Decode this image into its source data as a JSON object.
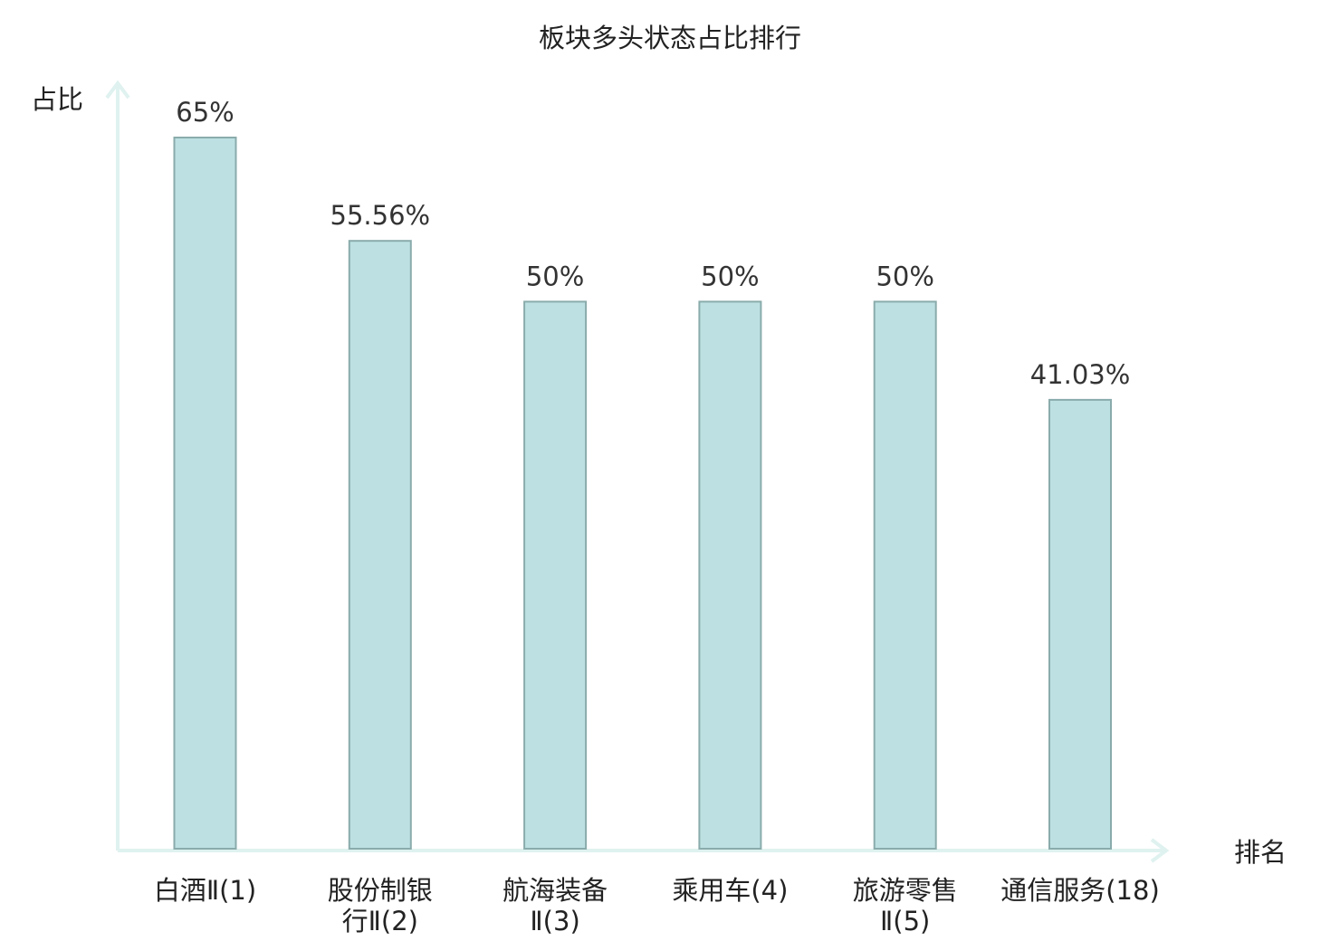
{
  "chart_data": {
    "type": "bar",
    "title": "板块多头状态占比排行",
    "xlabel": "排名",
    "ylabel": "占比",
    "ylim": [
      0,
      70
    ],
    "grid": false,
    "categories": [
      [
        "白酒Ⅱ(1)"
      ],
      [
        "股份制银",
        "行Ⅱ(2)"
      ],
      [
        "航海装备",
        "Ⅱ(3)"
      ],
      [
        "乘用车(4)"
      ],
      [
        "旅游零售",
        "Ⅱ(5)"
      ],
      [
        "通信服务(18)"
      ]
    ],
    "values": [
      65,
      55.56,
      50,
      50,
      50,
      41.03
    ],
    "value_labels": [
      "65%",
      "55.56%",
      "50%",
      "50%",
      "50%",
      "41.03%"
    ],
    "highlight_index": 5
  },
  "colors": {
    "bar_fill": "#bde1e3",
    "bar_stroke": "#8aabab",
    "axis": "#dff2ef",
    "highlight_text": "#e0141e",
    "text": "#222222"
  }
}
